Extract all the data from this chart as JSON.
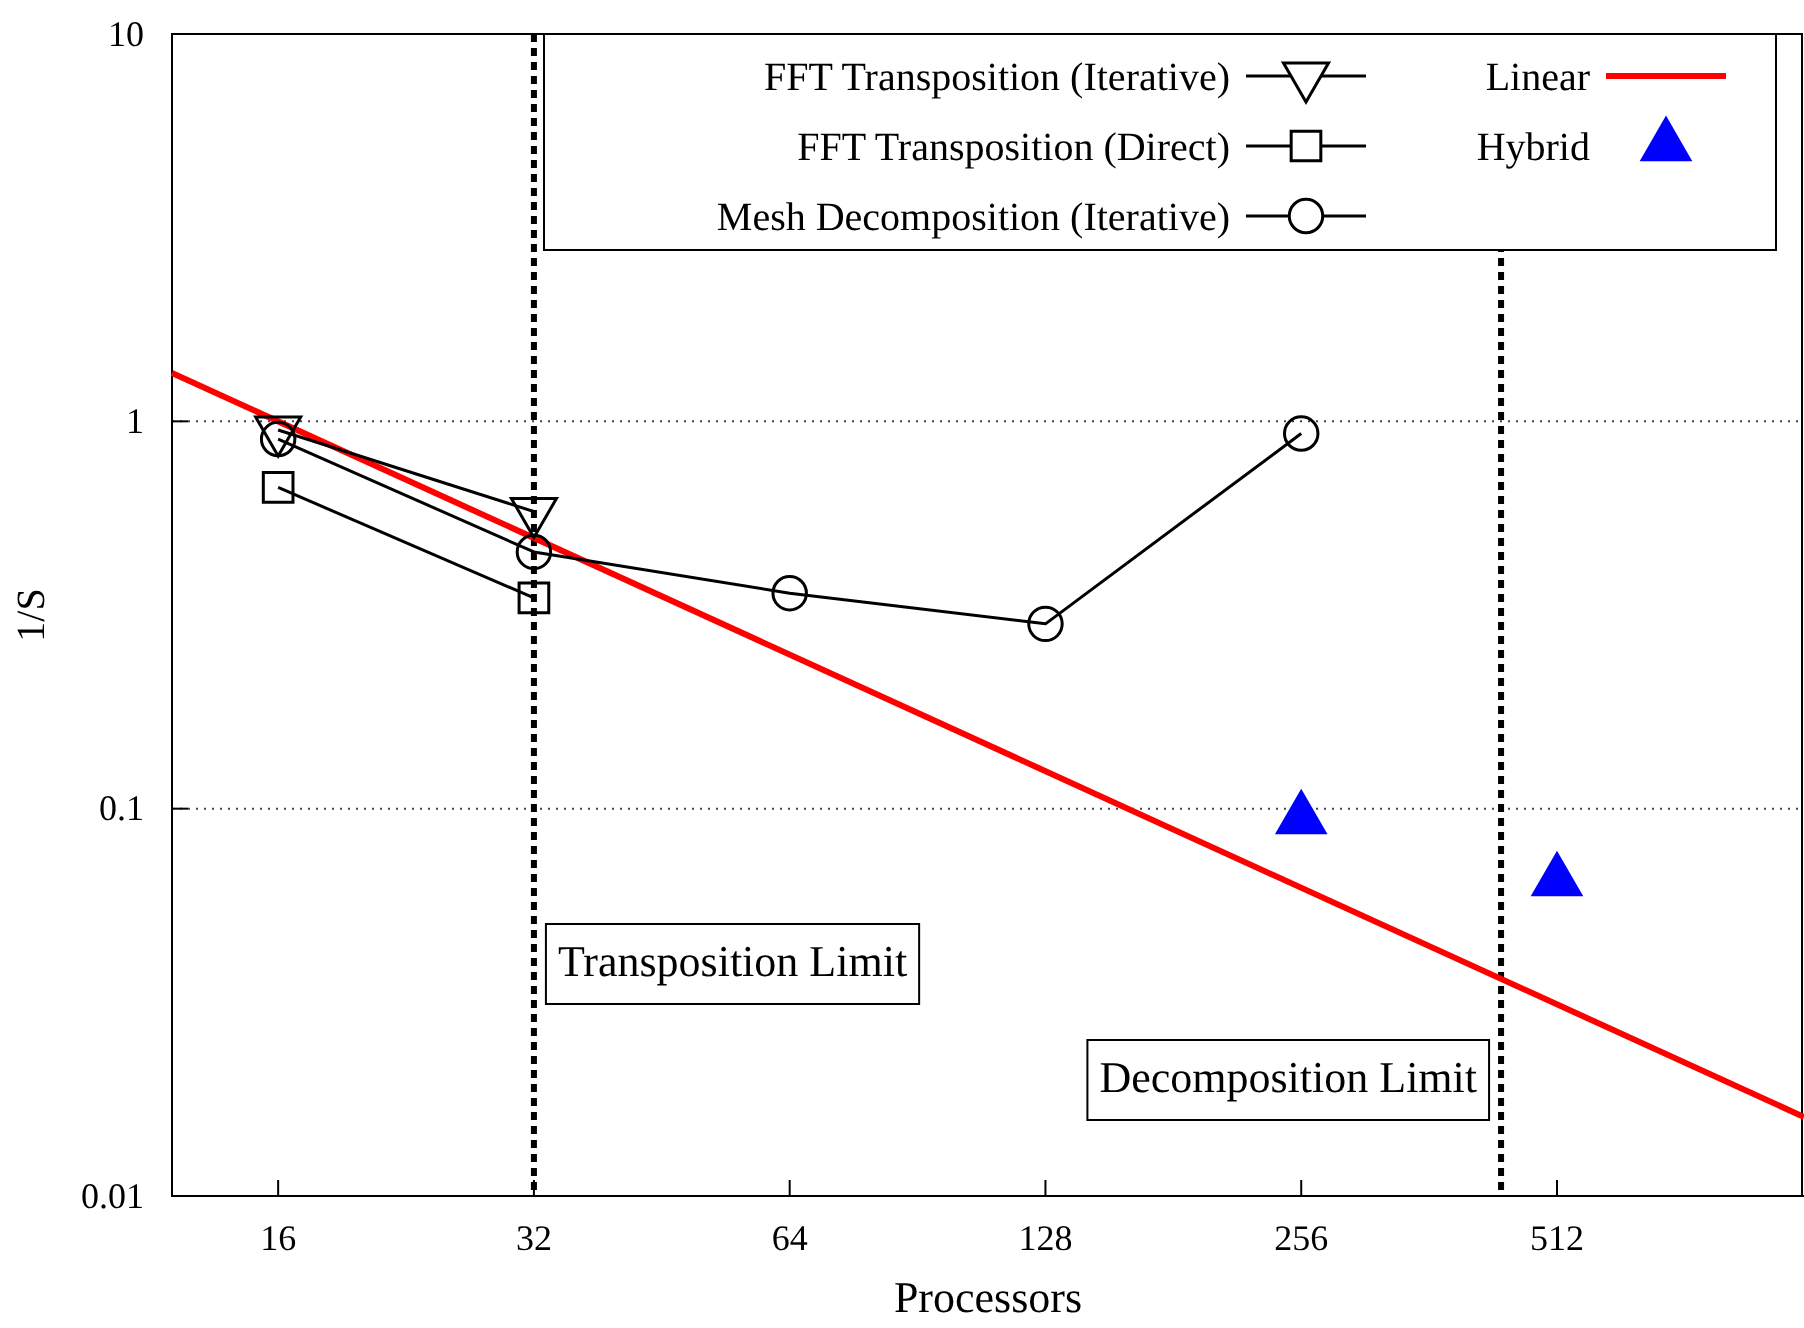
{
  "chart_data": {
    "type": "line",
    "xlabel": "Processors",
    "ylabel": "1/S",
    "log": "xy",
    "xlim": [
      12,
      1000
    ],
    "xticks": [
      16,
      32,
      64,
      128,
      256,
      512
    ],
    "ylim": [
      0.01,
      10
    ],
    "yticks": [
      0.01,
      0.1,
      1,
      10
    ],
    "grid": "y",
    "legend": "top right",
    "series": [
      {
        "name": "FFT Transposition (Iterative)",
        "color": "#000000",
        "marker": "triangle-down",
        "x": [
          16,
          32
        ],
        "values": [
          0.95,
          0.585
        ]
      },
      {
        "name": "FFT Transposition (Direct)",
        "color": "#000000",
        "marker": "square",
        "x": [
          16,
          32
        ],
        "values": [
          0.675,
          0.35
        ]
      },
      {
        "name": "Mesh Decomposition (Iterative)",
        "color": "#000000",
        "marker": "circle",
        "x": [
          16,
          32,
          64,
          128,
          256
        ],
        "values": [
          0.9,
          0.46,
          0.36,
          0.3,
          0.93
        ]
      },
      {
        "name": "Linear",
        "color": "#ff0000",
        "marker": "none",
        "x": [
          12,
          1000
        ],
        "values": [
          1.333,
          0.016
        ]
      },
      {
        "name": "Hybrid",
        "type": "scatter",
        "color": "#0000ff",
        "marker": "triangle",
        "x": [
          256,
          512
        ],
        "values": [
          0.094,
          0.065
        ]
      }
    ],
    "ref_lines": [
      {
        "axis": "x",
        "value": 32,
        "label": "Transposition Limit",
        "color": "#000000",
        "line_style": "dashed"
      },
      {
        "axis": "x",
        "value": 440,
        "label": "Decomposition Limit",
        "color": "#000000",
        "line_style": "dashed"
      }
    ]
  }
}
